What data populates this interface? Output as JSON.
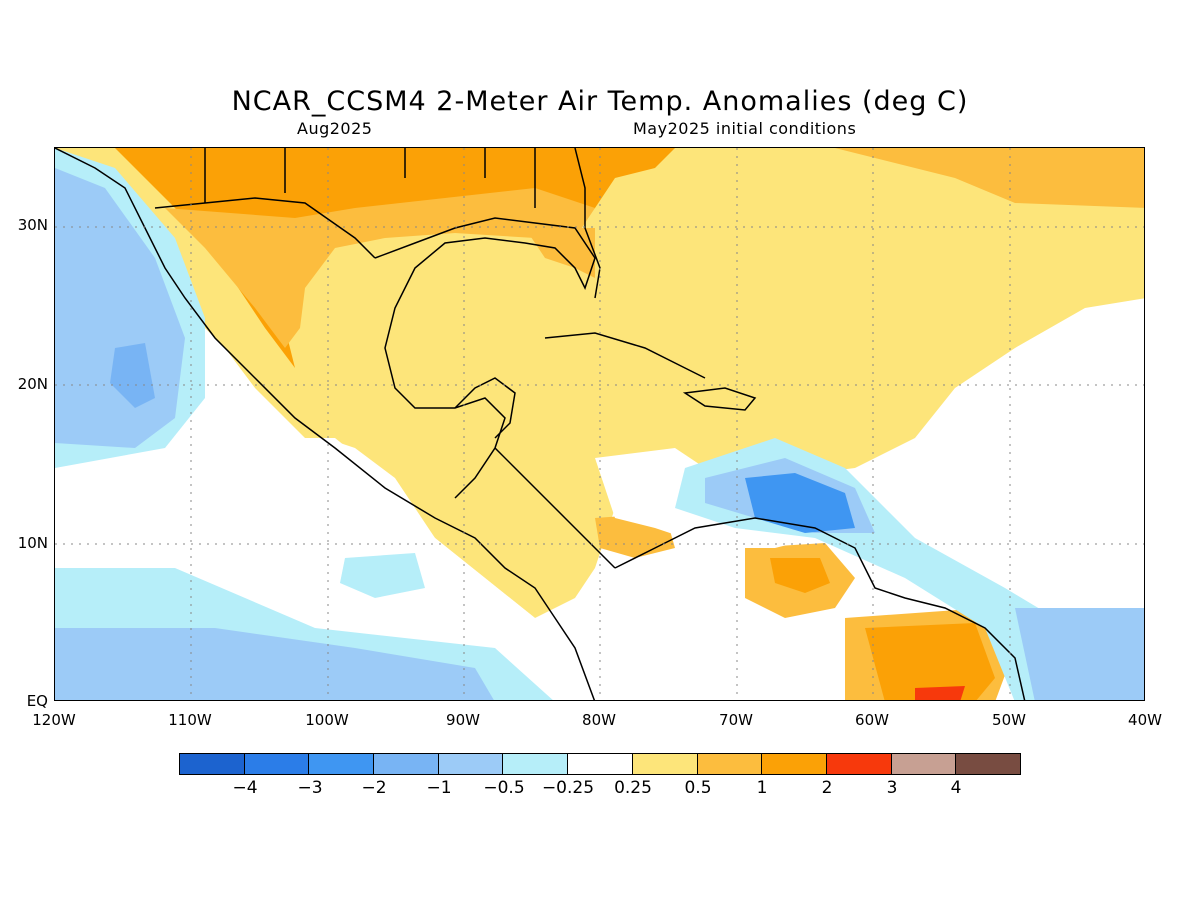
{
  "title": "NCAR_CCSM4 2-Meter Air Temp. Anomalies (deg C)",
  "subtitle_left": "Aug2025",
  "subtitle_right": "May2025 initial conditions",
  "map": {
    "lon_range": [
      -120,
      -40
    ],
    "lat_range": [
      0,
      35
    ],
    "grid_lines": "dotted",
    "y_ticks": [
      "30N",
      "20N",
      "10N",
      "EQ"
    ],
    "x_ticks": [
      "120W",
      "110W",
      "100W",
      "90W",
      "80W",
      "70W",
      "60W",
      "50W",
      "40W"
    ]
  },
  "colorbar": {
    "colors": [
      "#1c63cf",
      "#2b7de8",
      "#3f96f2",
      "#78b4f4",
      "#9ccbf7",
      "#b6eef9",
      "#ffffff",
      "#fde57a",
      "#fcbd3e",
      "#fba106",
      "#f7390c",
      "#c7a093",
      "#784c41"
    ],
    "labels": [
      "−4",
      "−3",
      "−2",
      "−1",
      "−0.5",
      "−0.25",
      "0.25",
      "0.5",
      "1",
      "2",
      "3",
      "4"
    ]
  }
}
